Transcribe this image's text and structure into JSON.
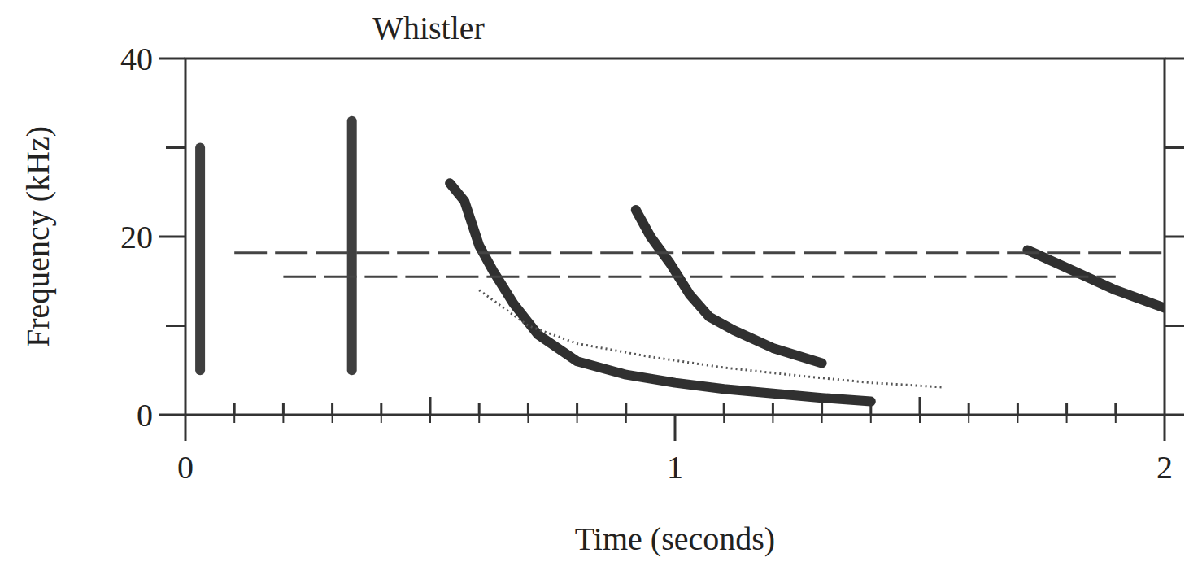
{
  "chart_data": {
    "type": "line",
    "title": "Whistler",
    "x_label": "Time (seconds)",
    "y_label": "Frequency (kHz)",
    "xlim": [
      0,
      2
    ],
    "xticks": [
      0,
      1,
      2
    ],
    "ylim": [
      0,
      40
    ],
    "yticks": [
      0,
      20,
      40
    ],
    "grid": false,
    "series": [
      {
        "color": "#1a1a1a",
        "line_style": "solid",
        "x": [
          0.54,
          0.57,
          0.6,
          0.63,
          0.67,
          0.72,
          0.8,
          0.9,
          1.0,
          1.1,
          1.2,
          1.3,
          1.4
        ],
        "values": [
          26,
          24,
          19,
          16,
          12.5,
          9,
          6,
          4.5,
          3.6,
          2.9,
          2.4,
          1.9,
          1.5
        ]
      },
      {
        "color": "#555555",
        "line_style": "dotted",
        "x": [
          0.6,
          0.7,
          0.8,
          0.95,
          1.1,
          1.25,
          1.4,
          1.55
        ],
        "values": [
          14,
          10,
          8,
          6.5,
          5.3,
          4.4,
          3.6,
          3.1
        ]
      },
      {
        "color": "#1a1a1a",
        "line_style": "solid",
        "x": [
          0.92,
          0.95,
          0.99,
          1.03,
          1.07,
          1.12,
          1.2,
          1.3
        ],
        "values": [
          23,
          20,
          17,
          13.5,
          11,
          9.5,
          7.5,
          5.8
        ]
      },
      {
        "color": "#1a1a1a",
        "line_style": "solid",
        "x": [
          1.72,
          1.8,
          1.9,
          2.0
        ],
        "values": [
          18.5,
          16.5,
          14,
          12
        ]
      },
      {
        "color": "#2a2a2a",
        "line_style": "solid",
        "x": [
          0.03,
          0.03
        ],
        "values": [
          5,
          30
        ]
      },
      {
        "color": "#2a2a2a",
        "line_style": "solid",
        "x": [
          0.34,
          0.34
        ],
        "values": [
          5,
          33
        ]
      },
      {
        "color": "#444444",
        "line_style": "dashed",
        "x": [
          0.1,
          2.0
        ],
        "values": [
          18.2,
          18.2
        ]
      },
      {
        "color": "#444444",
        "line_style": "dashed",
        "x": [
          0.2,
          1.9
        ],
        "values": [
          15.5,
          15.5
        ]
      }
    ]
  }
}
